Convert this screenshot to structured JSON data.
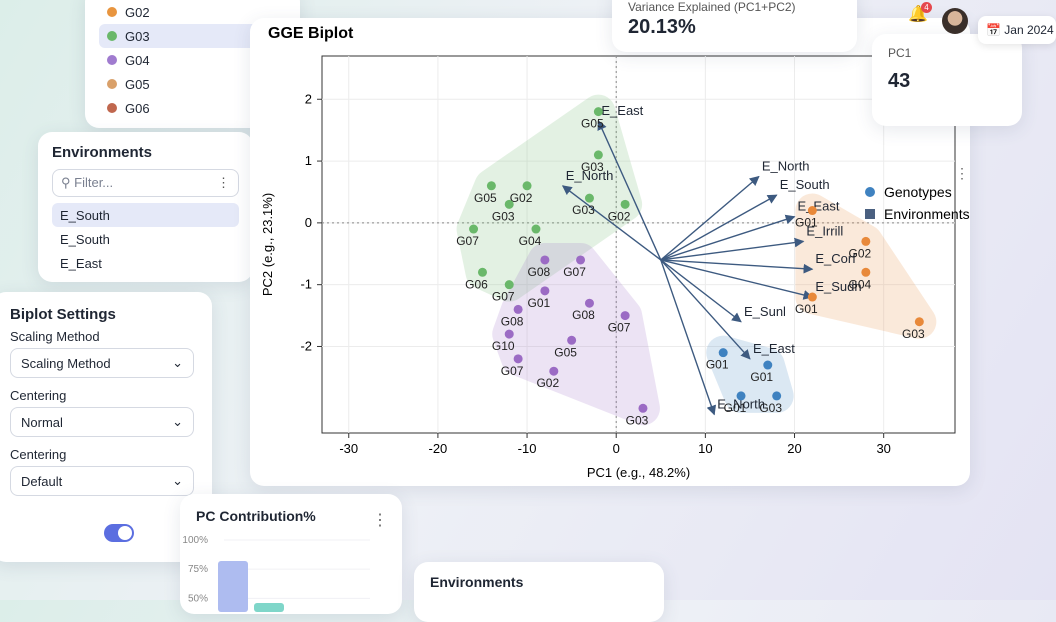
{
  "sidebar": {
    "genotype_list": [
      {
        "label": "G02",
        "color": "#e8953f"
      },
      {
        "label": "G03",
        "color": "#6ab86a"
      },
      {
        "label": "G04",
        "color": "#a07bcf"
      },
      {
        "label": "G05",
        "color": "#d9a06a"
      },
      {
        "label": "G06",
        "color": "#c0674e"
      }
    ],
    "environments": {
      "title": "Environments",
      "filter_placeholder": "Filter...",
      "items": [
        "E_South",
        "E_South",
        "E_East"
      ]
    },
    "settings": {
      "title": "Biplot Settings",
      "fields": [
        {
          "label": "Scaling Method",
          "value": "Scaling Method"
        },
        {
          "label": "Centering",
          "value": "Normal"
        },
        {
          "label": "Centering",
          "value": "Default"
        }
      ]
    }
  },
  "header": {
    "notifications": "4",
    "date": "Jan 2024"
  },
  "kpis": [
    {
      "label": "Variance Explained (PC1+PC2)",
      "value": "20.13%"
    },
    {
      "label": "PC1",
      "value": "43"
    }
  ],
  "biplot": {
    "type": "scatter",
    "title": "GGE Biplot",
    "xlabel": "PC1 (e.g., 48.2%)",
    "ylabel": "PC2 (e.g., 23.1%)",
    "xlim": [
      -33,
      38
    ],
    "ylim": [
      -3.4,
      2.7
    ],
    "xticks": [
      -30,
      -20,
      -10,
      0,
      10,
      20,
      30
    ],
    "yticks": [
      -2,
      -1,
      0,
      1,
      2
    ],
    "grid": true,
    "legend": [
      {
        "label": "Genotypes",
        "color": "#3f82c0"
      },
      {
        "label": "Environments",
        "color": "#4a6080"
      }
    ],
    "groups": [
      {
        "color": "#6ab86a",
        "points": [
          {
            "label": "G05",
            "x": -2,
            "y": 1.8
          },
          {
            "label": "G03",
            "x": -2,
            "y": 1.1
          },
          {
            "label": "G02",
            "x": 1,
            "y": 0.3
          },
          {
            "label": "G03",
            "x": -3,
            "y": 0.4
          },
          {
            "label": "G05",
            "x": -14,
            "y": 0.6
          },
          {
            "label": "G02",
            "x": -10,
            "y": 0.6
          },
          {
            "label": "G03",
            "x": -12,
            "y": 0.3
          },
          {
            "label": "G04",
            "x": -9,
            "y": -0.1
          },
          {
            "label": "G07",
            "x": -16,
            "y": -0.1
          },
          {
            "label": "G06",
            "x": -15,
            "y": -0.8
          },
          {
            "label": "G07",
            "x": -12,
            "y": -1.0
          }
        ]
      },
      {
        "color": "#9b6bc4",
        "points": [
          {
            "label": "G08",
            "x": -8,
            "y": -0.6
          },
          {
            "label": "G07",
            "x": -4,
            "y": -0.6
          },
          {
            "label": "G01",
            "x": -8,
            "y": -1.1
          },
          {
            "label": "G08",
            "x": -3,
            "y": -1.3
          },
          {
            "label": "G07",
            "x": 1,
            "y": -1.5
          },
          {
            "label": "G08",
            "x": -11,
            "y": -1.4
          },
          {
            "label": "G10",
            "x": -12,
            "y": -1.8
          },
          {
            "label": "G07",
            "x": -11,
            "y": -2.2
          },
          {
            "label": "G05",
            "x": -5,
            "y": -1.9
          },
          {
            "label": "G02",
            "x": -7,
            "y": -2.4
          },
          {
            "label": "G03",
            "x": 3,
            "y": -3.0
          }
        ]
      },
      {
        "color": "#3f82c0",
        "points": [
          {
            "label": "G01",
            "x": 12,
            "y": -2.1
          },
          {
            "label": "G01",
            "x": 14,
            "y": -2.8
          },
          {
            "label": "G03",
            "x": 18,
            "y": -2.8
          },
          {
            "label": "G01",
            "x": 17,
            "y": -2.3
          }
        ]
      },
      {
        "color": "#e8893a",
        "points": [
          {
            "label": "G01",
            "x": 22,
            "y": 0.2
          },
          {
            "label": "G02",
            "x": 28,
            "y": -0.3
          },
          {
            "label": "G04",
            "x": 28,
            "y": -0.8
          },
          {
            "label": "G01",
            "x": 22,
            "y": -1.2
          },
          {
            "label": "G03",
            "x": 34,
            "y": -1.6
          }
        ]
      }
    ],
    "vector_origin": [
      5,
      -0.6
    ],
    "environments": [
      {
        "label": "E_East",
        "x": -2,
        "y": 1.65
      },
      {
        "label": "E_North",
        "x": -6,
        "y": 0.6
      },
      {
        "label": "E_North",
        "x": 16,
        "y": 0.75
      },
      {
        "label": "E_South",
        "x": 18,
        "y": 0.45
      },
      {
        "label": "E_East",
        "x": 20,
        "y": 0.1
      },
      {
        "label": "E_Irrill",
        "x": 21,
        "y": -0.3
      },
      {
        "label": "E_Corf",
        "x": 22,
        "y": -0.75
      },
      {
        "label": "E_Sudh",
        "x": 22,
        "y": -1.2
      },
      {
        "label": "E_Sunl",
        "x": 14,
        "y": -1.6
      },
      {
        "label": "E_East",
        "x": 15,
        "y": -2.2
      },
      {
        "label": "E_North",
        "x": 11,
        "y": -3.1
      }
    ]
  },
  "contribution": {
    "title": "PC Contribution%",
    "ylim": [
      40,
      100
    ],
    "yticks": [
      {
        "value": 100,
        "label": "100%"
      },
      {
        "value": 75,
        "label": "75%"
      },
      {
        "value": 50,
        "label": "50%"
      }
    ],
    "bars": [
      {
        "value": 82,
        "color": "#aebcf0"
      },
      {
        "value": 46,
        "color": "#7fd6c9"
      }
    ]
  },
  "bottom_card": {
    "title": "Environments"
  }
}
